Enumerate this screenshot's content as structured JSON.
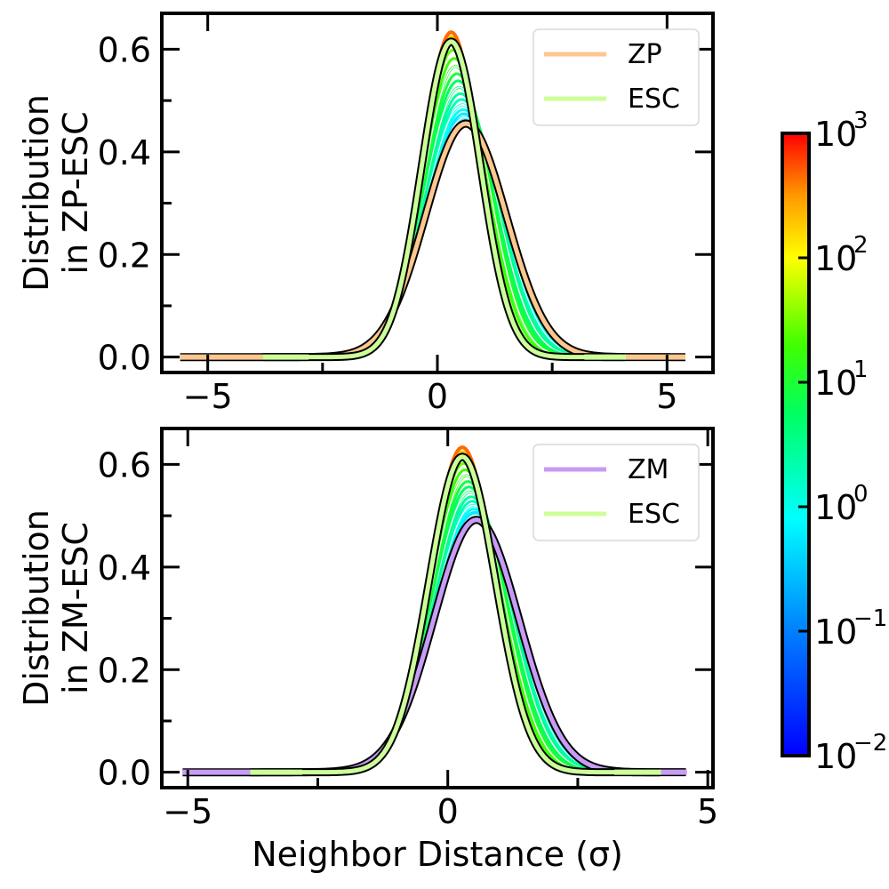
{
  "chart_data": [
    {
      "type": "line",
      "ylabel_lines": [
        "Distribution",
        "in ZP-ESC"
      ],
      "xlabel": "",
      "xlim": [
        -6.0,
        6.0
      ],
      "ylim": [
        -0.03,
        0.67
      ],
      "xticks": [
        -5,
        0,
        5
      ],
      "xtick_labels": [
        "−5",
        "0",
        "5"
      ],
      "yticks": [
        0.0,
        0.2,
        0.4,
        0.6
      ],
      "ytick_labels": [
        "0.0",
        "0.2",
        "0.4",
        "0.6"
      ],
      "legend_position": "top-right",
      "series": [
        {
          "name": "ZP",
          "color": "#fdc78f",
          "x_range": [
            -5.6,
            5.4
          ],
          "mean": 0.62,
          "sigma": 0.88,
          "peak": 0.455
        },
        {
          "name": "ESC",
          "color": "#ccff99",
          "x_range": [
            -3.8,
            4.1
          ],
          "mean": 0.3,
          "sigma": 0.64,
          "peak": 0.615
        }
      ],
      "intermediate_curve_count": 14
    },
    {
      "type": "line",
      "ylabel_lines": [
        "Distribution",
        "in ZM-ESC"
      ],
      "xlabel": "Neighbor Distance (σ)",
      "xlim": [
        -5.5,
        5.1
      ],
      "ylim": [
        -0.03,
        0.67
      ],
      "xticks": [
        -5,
        0,
        5
      ],
      "xtick_labels": [
        "−5",
        "0",
        "5"
      ],
      "yticks": [
        0.0,
        0.2,
        0.4,
        0.6
      ],
      "ytick_labels": [
        "0.0",
        "0.2",
        "0.4",
        "0.6"
      ],
      "legend_position": "top-right",
      "series": [
        {
          "name": "ZM",
          "color": "#c89cf6",
          "x_range": [
            -5.1,
            4.6
          ],
          "mean": 0.55,
          "sigma": 0.82,
          "peak": 0.492
        },
        {
          "name": "ESC",
          "color": "#ccff99",
          "x_range": [
            -3.8,
            4.1
          ],
          "mean": 0.28,
          "sigma": 0.64,
          "peak": 0.615
        }
      ],
      "intermediate_curve_count": 14
    }
  ],
  "colorbar": {
    "scale": "log",
    "min_exponent": -2,
    "max_exponent": 3,
    "tick_base": "10",
    "tick_exponents": [
      "−2",
      "−1",
      "0",
      "1",
      "2",
      "3"
    ],
    "colormap": "hsv-like: blue-cyan-green-yellow-red"
  }
}
